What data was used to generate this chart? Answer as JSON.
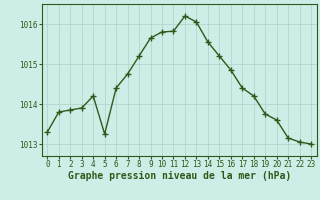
{
  "x": [
    0,
    1,
    2,
    3,
    4,
    5,
    6,
    7,
    8,
    9,
    10,
    11,
    12,
    13,
    14,
    15,
    16,
    17,
    18,
    19,
    20,
    21,
    22,
    23
  ],
  "y": [
    1013.3,
    1013.8,
    1013.85,
    1013.9,
    1014.2,
    1013.25,
    1014.4,
    1014.75,
    1015.2,
    1015.65,
    1015.8,
    1015.82,
    1016.2,
    1016.05,
    1015.55,
    1015.2,
    1014.85,
    1014.4,
    1014.2,
    1013.75,
    1013.6,
    1013.15,
    1013.05,
    1013.0
  ],
  "line_color": "#2d5a1b",
  "marker": "+",
  "marker_size": 4.0,
  "bg_color": "#cceee6",
  "grid_color": "#aad4c8",
  "xlabel": "Graphe pression niveau de la mer (hPa)",
  "xlabel_fontsize": 7,
  "yticks": [
    1013,
    1014,
    1015,
    1016
  ],
  "xticks": [
    0,
    1,
    2,
    3,
    4,
    5,
    6,
    7,
    8,
    9,
    10,
    11,
    12,
    13,
    14,
    15,
    16,
    17,
    18,
    19,
    20,
    21,
    22,
    23
  ],
  "ylim": [
    1012.7,
    1016.5
  ],
  "xlim": [
    -0.5,
    23.5
  ],
  "tick_fontsize": 5.5,
  "tick_color": "#2d5a1b",
  "line_width": 1.0,
  "marker_edge_width": 1.0
}
